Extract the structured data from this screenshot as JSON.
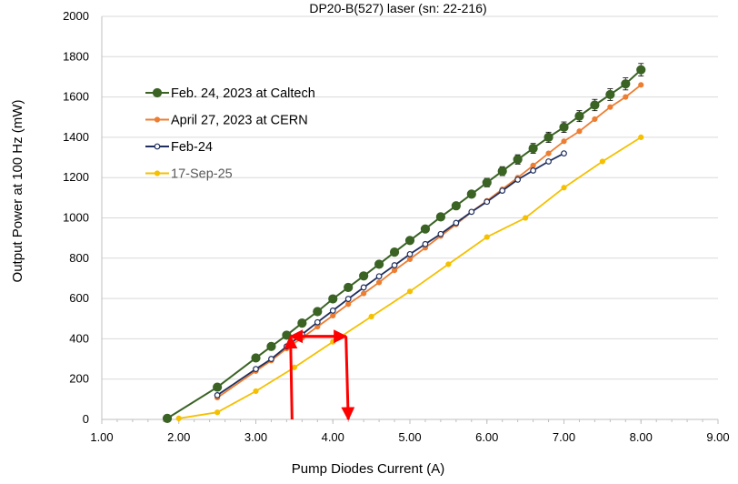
{
  "chart_data": {
    "type": "line",
    "title": "DP20-B(527) laser (sn: 22-216)",
    "xlabel": "Pump Diodes Current (A)",
    "ylabel": "Output Power at 100 Hz (mW)",
    "xlim": [
      1.0,
      9.0
    ],
    "ylim": [
      0,
      2000
    ],
    "x_ticks": [
      "1.00",
      "2.00",
      "3.00",
      "4.00",
      "5.00",
      "6.00",
      "7.00",
      "8.00",
      "9.00"
    ],
    "y_ticks": [
      "0",
      "200",
      "400",
      "600",
      "800",
      "1000",
      "1200",
      "1400",
      "1600",
      "1800",
      "2000"
    ],
    "grid": "horizontal",
    "legend_position": "upper-left",
    "series": [
      {
        "name": "Feb. 24, 2023 at Caltech",
        "color": "#3a6324",
        "marker": "filled-circle-large",
        "error_bars": true,
        "points": [
          [
            1.85,
            5
          ],
          [
            2.5,
            160
          ],
          [
            3.0,
            305
          ],
          [
            3.2,
            362
          ],
          [
            3.4,
            418
          ],
          [
            3.6,
            478
          ],
          [
            3.8,
            535
          ],
          [
            4.0,
            598
          ],
          [
            4.2,
            655
          ],
          [
            4.4,
            712
          ],
          [
            4.6,
            770
          ],
          [
            4.8,
            830
          ],
          [
            5.0,
            888
          ],
          [
            5.2,
            945
          ],
          [
            5.4,
            1005
          ],
          [
            5.6,
            1060
          ],
          [
            5.8,
            1118
          ],
          [
            6.0,
            1175
          ],
          [
            6.2,
            1232
          ],
          [
            6.4,
            1290
          ],
          [
            6.6,
            1345
          ],
          [
            6.8,
            1400
          ],
          [
            7.0,
            1450
          ],
          [
            7.2,
            1505
          ],
          [
            7.4,
            1560
          ],
          [
            7.6,
            1612
          ],
          [
            7.8,
            1665
          ],
          [
            8.0,
            1735
          ]
        ]
      },
      {
        "name": "April 27, 2023 at CERN",
        "color": "#ed7d31",
        "marker": "filled-circle-small",
        "points": [
          [
            2.5,
            108
          ],
          [
            3.0,
            240
          ],
          [
            3.2,
            292
          ],
          [
            3.4,
            352
          ],
          [
            3.6,
            405
          ],
          [
            3.8,
            460
          ],
          [
            4.0,
            515
          ],
          [
            4.2,
            572
          ],
          [
            4.4,
            625
          ],
          [
            4.6,
            680
          ],
          [
            4.8,
            740
          ],
          [
            5.0,
            795
          ],
          [
            5.2,
            852
          ],
          [
            5.4,
            910
          ],
          [
            5.6,
            968
          ],
          [
            5.8,
            1030
          ],
          [
            6.0,
            1085
          ],
          [
            6.2,
            1142
          ],
          [
            6.4,
            1200
          ],
          [
            6.6,
            1260
          ],
          [
            6.8,
            1320
          ],
          [
            7.0,
            1380
          ],
          [
            7.2,
            1430
          ],
          [
            7.4,
            1490
          ],
          [
            7.6,
            1550
          ],
          [
            7.8,
            1600
          ],
          [
            8.0,
            1660
          ]
        ]
      },
      {
        "name": "Feb-24",
        "color": "#1f2f5f",
        "marker": "open-circle",
        "points": [
          [
            2.5,
            120
          ],
          [
            3.0,
            250
          ],
          [
            3.2,
            300
          ],
          [
            3.4,
            362
          ],
          [
            3.6,
            422
          ],
          [
            3.8,
            482
          ],
          [
            4.0,
            540
          ],
          [
            4.2,
            598
          ],
          [
            4.4,
            655
          ],
          [
            4.6,
            710
          ],
          [
            4.8,
            765
          ],
          [
            5.0,
            820
          ],
          [
            5.2,
            870
          ],
          [
            5.4,
            920
          ],
          [
            5.6,
            975
          ],
          [
            5.8,
            1030
          ],
          [
            6.0,
            1080
          ],
          [
            6.2,
            1135
          ],
          [
            6.4,
            1190
          ],
          [
            6.6,
            1235
          ],
          [
            6.8,
            1280
          ],
          [
            7.0,
            1320
          ]
        ]
      },
      {
        "name": "17-Sep-25",
        "color": "#f5c000",
        "marker": "filled-circle-small",
        "points": [
          [
            2.0,
            5
          ],
          [
            2.5,
            35
          ],
          [
            3.0,
            140
          ],
          [
            3.5,
            258
          ],
          [
            4.0,
            385
          ],
          [
            4.5,
            510
          ],
          [
            5.0,
            635
          ],
          [
            5.5,
            770
          ],
          [
            6.0,
            905
          ],
          [
            6.5,
            1000
          ],
          [
            7.0,
            1150
          ],
          [
            7.5,
            1280
          ],
          [
            8.0,
            1400
          ]
        ]
      }
    ],
    "annotations": {
      "color": "#ff0000",
      "lines": [
        {
          "from": [
            3.47,
            0
          ],
          "to": [
            3.45,
            412
          ],
          "arrow": "end"
        },
        {
          "from": [
            4.17,
            412
          ],
          "to": [
            3.45,
            412
          ],
          "arrow": "end"
        },
        {
          "from": [
            3.45,
            412
          ],
          "to": [
            4.17,
            412
          ],
          "arrow": "end"
        },
        {
          "from": [
            4.17,
            412
          ],
          "to": [
            4.2,
            0
          ],
          "arrow": "end"
        }
      ]
    }
  }
}
